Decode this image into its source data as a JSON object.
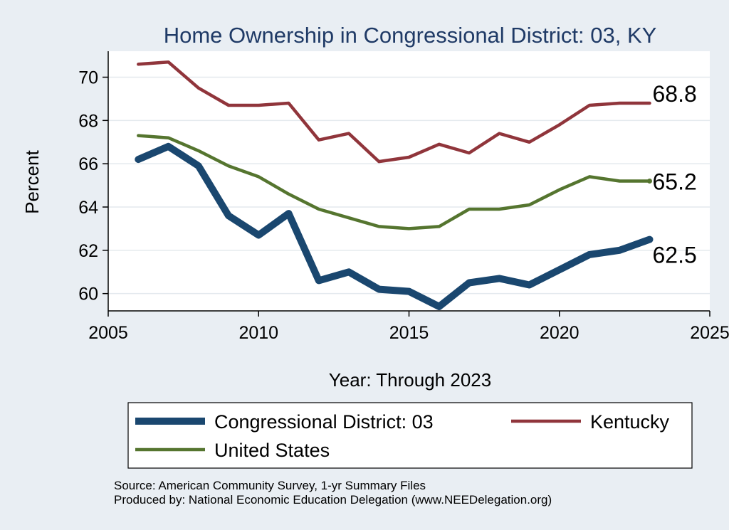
{
  "chart_data": {
    "type": "line",
    "title": "Home Ownership in Congressional District:  03, KY",
    "xlabel": "Year: Through 2023",
    "ylabel": "Percent",
    "xlim": [
      2005,
      2025
    ],
    "ylim": [
      59.2,
      71.2
    ],
    "x_ticks": [
      2005,
      2010,
      2015,
      2020,
      2025
    ],
    "y_ticks": [
      60,
      62,
      64,
      66,
      68,
      70
    ],
    "grid": true,
    "legend_position": "bottom",
    "x": [
      2006,
      2007,
      2008,
      2009,
      2010,
      2011,
      2012,
      2013,
      2014,
      2015,
      2016,
      2017,
      2018,
      2019,
      2020,
      2021,
      2022,
      2023
    ],
    "series": [
      {
        "name": "Congressional District:  03",
        "color": "#1a476f",
        "values": [
          66.2,
          66.8,
          65.9,
          63.6,
          62.7,
          63.7,
          60.6,
          61.0,
          60.2,
          60.1,
          59.4,
          60.5,
          60.7,
          60.4,
          61.1,
          61.8,
          62.0,
          62.5
        ],
        "end_label": "62.5"
      },
      {
        "name": "Kentucky",
        "color": "#90353b",
        "values": [
          70.6,
          70.7,
          69.5,
          68.7,
          68.7,
          68.8,
          67.1,
          67.4,
          66.1,
          66.3,
          66.9,
          66.5,
          67.4,
          67.0,
          67.8,
          68.7,
          68.8,
          68.8
        ],
        "end_label": "68.8"
      },
      {
        "name": "United States",
        "color": "#55752f",
        "values": [
          67.3,
          67.2,
          66.6,
          65.9,
          65.4,
          64.6,
          63.9,
          63.5,
          63.1,
          63.0,
          63.1,
          63.9,
          63.9,
          64.1,
          64.8,
          65.4,
          65.2,
          65.2
        ],
        "end_label": "65.2"
      }
    ],
    "source_lines": [
      "Source: American Community Survey, 1-yr Summary Files",
      "Produced by: National Economic Education Delegation (www.NEEDelegation.org)"
    ]
  }
}
